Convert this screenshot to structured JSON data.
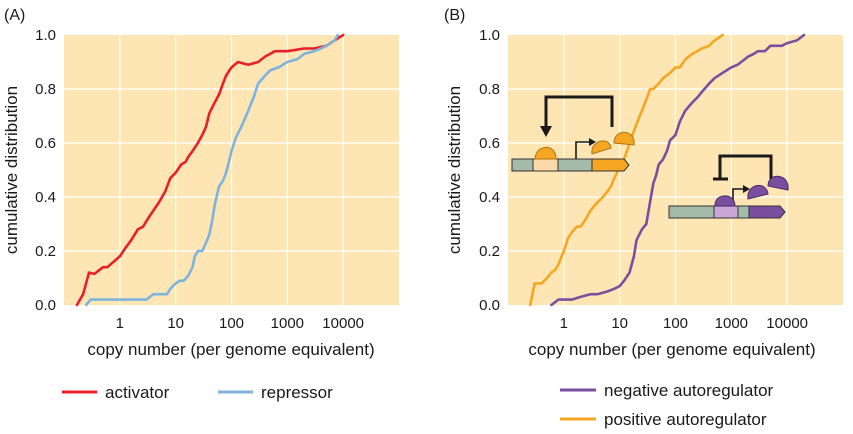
{
  "chart_data": [
    {
      "type": "line",
      "panel_label": "(A)",
      "xlabel": "copy number (per genome equivalent)",
      "ylabel": "cumulative distribution",
      "xscale": "log",
      "xlim": [
        0.1,
        100000
      ],
      "ylim": [
        0,
        1
      ],
      "xticks": [
        1,
        10,
        100,
        1000,
        10000
      ],
      "xtick_labels": [
        "1",
        "10",
        "100",
        "1000",
        "10000"
      ],
      "yticks": [
        0,
        0.2,
        0.4,
        0.6,
        0.8,
        1.0
      ],
      "ytick_labels": [
        "0.0",
        "0.2",
        "0.4",
        "0.6",
        "0.8",
        "1.0"
      ],
      "grid": true,
      "background": "#fde6b4",
      "legend_position": "below",
      "series": [
        {
          "name": "activator",
          "color": "#e8202a",
          "x": [
            0.17,
            0.22,
            0.28,
            0.35,
            0.5,
            0.6,
            1.0,
            1.25,
            1.6,
            2.1,
            2.6,
            3.2,
            4.0,
            5.0,
            6.5,
            8.0,
            10,
            12.5,
            15,
            17,
            20,
            25,
            30,
            35,
            40,
            50,
            60,
            70,
            80,
            100,
            130,
            200,
            300,
            400,
            600,
            1000,
            2000,
            3000,
            5000,
            7000,
            10000
          ],
          "y": [
            0.0,
            0.04,
            0.12,
            0.115,
            0.14,
            0.14,
            0.18,
            0.21,
            0.24,
            0.28,
            0.29,
            0.32,
            0.35,
            0.38,
            0.42,
            0.47,
            0.49,
            0.52,
            0.53,
            0.55,
            0.57,
            0.6,
            0.63,
            0.66,
            0.71,
            0.75,
            0.78,
            0.82,
            0.85,
            0.88,
            0.9,
            0.89,
            0.9,
            0.92,
            0.94,
            0.94,
            0.95,
            0.95,
            0.96,
            0.98,
            1.0
          ]
        },
        {
          "name": "repressor",
          "color": "#7fb2dd",
          "x": [
            0.25,
            0.3,
            1.0,
            3.0,
            4.0,
            5.0,
            7.0,
            8.0,
            10,
            12,
            14,
            17,
            20,
            22,
            25,
            30,
            35,
            40,
            45,
            50,
            60,
            70,
            80,
            90,
            100,
            120,
            150,
            200,
            250,
            300,
            400,
            500,
            700,
            1000,
            1500,
            2000,
            3000,
            4000,
            5000,
            7000,
            8000
          ],
          "y": [
            0.0,
            0.02,
            0.02,
            0.02,
            0.04,
            0.04,
            0.04,
            0.06,
            0.08,
            0.09,
            0.09,
            0.11,
            0.14,
            0.18,
            0.2,
            0.2,
            0.23,
            0.26,
            0.31,
            0.37,
            0.44,
            0.46,
            0.49,
            0.53,
            0.57,
            0.62,
            0.66,
            0.72,
            0.77,
            0.82,
            0.85,
            0.87,
            0.88,
            0.9,
            0.91,
            0.93,
            0.94,
            0.95,
            0.96,
            0.98,
            1.0
          ]
        }
      ]
    },
    {
      "type": "line",
      "panel_label": "(B)",
      "xlabel": "copy number (per genome equivalent)",
      "ylabel": "cumulative distribution",
      "xscale": "log",
      "xlim": [
        0.1,
        100000
      ],
      "ylim": [
        0,
        1
      ],
      "xticks": [
        1,
        10,
        100,
        1000,
        10000
      ],
      "xtick_labels": [
        "1",
        "10",
        "100",
        "1000",
        "10000"
      ],
      "yticks": [
        0,
        0.2,
        0.4,
        0.6,
        0.8,
        1.0
      ],
      "ytick_labels": [
        "0.0",
        "0.2",
        "0.4",
        "0.6",
        "0.8",
        "1.0"
      ],
      "grid": true,
      "background": "#fde6b4",
      "legend_position": "below",
      "series": [
        {
          "name": "negative autoregulator",
          "color": "#7b4fa0",
          "x": [
            0.6,
            0.8,
            1.0,
            1.4,
            2.0,
            3.0,
            4.0,
            6.0,
            8.0,
            10,
            12,
            15,
            18,
            20,
            25,
            30,
            35,
            40,
            45,
            50,
            55,
            60,
            70,
            80,
            100,
            120,
            150,
            200,
            250,
            300,
            400,
            500,
            700,
            1000,
            1300,
            1500,
            2000,
            2500,
            3000,
            4000,
            5000,
            6000,
            8000,
            10000,
            15000,
            20000
          ],
          "y": [
            0.0,
            0.02,
            0.02,
            0.02,
            0.03,
            0.04,
            0.04,
            0.05,
            0.06,
            0.07,
            0.09,
            0.12,
            0.18,
            0.24,
            0.28,
            0.3,
            0.38,
            0.45,
            0.48,
            0.52,
            0.53,
            0.54,
            0.57,
            0.61,
            0.63,
            0.68,
            0.72,
            0.75,
            0.77,
            0.79,
            0.82,
            0.84,
            0.86,
            0.88,
            0.89,
            0.9,
            0.92,
            0.93,
            0.94,
            0.94,
            0.96,
            0.96,
            0.96,
            0.97,
            0.98,
            1.0
          ]
        },
        {
          "name": "positive autoregulator",
          "color": "#f5a623",
          "x": [
            0.25,
            0.3,
            0.4,
            0.5,
            0.6,
            0.7,
            0.8,
            1.0,
            1.2,
            1.4,
            1.7,
            2.0,
            2.5,
            3.0,
            4.0,
            5.0,
            6.0,
            7.0,
            8.0,
            10,
            12,
            14,
            17,
            20,
            25,
            30,
            35,
            40,
            50,
            60,
            80,
            100,
            120,
            150,
            200,
            300,
            400,
            500,
            700
          ],
          "y": [
            0.0,
            0.08,
            0.08,
            0.1,
            0.12,
            0.13,
            0.15,
            0.2,
            0.25,
            0.27,
            0.29,
            0.29,
            0.32,
            0.35,
            0.38,
            0.4,
            0.42,
            0.44,
            0.47,
            0.51,
            0.54,
            0.58,
            0.63,
            0.67,
            0.72,
            0.76,
            0.8,
            0.8,
            0.82,
            0.84,
            0.86,
            0.88,
            0.88,
            0.91,
            0.93,
            0.95,
            0.96,
            0.98,
            1.0
          ]
        }
      ]
    }
  ],
  "diagram_colors": {
    "gene_bar": "#a3bba8",
    "positive_gene": "#f5a623",
    "positive_site": "#fcd9a6",
    "negative_gene": "#7b4fa0",
    "negative_site": "#c9a6d6"
  }
}
